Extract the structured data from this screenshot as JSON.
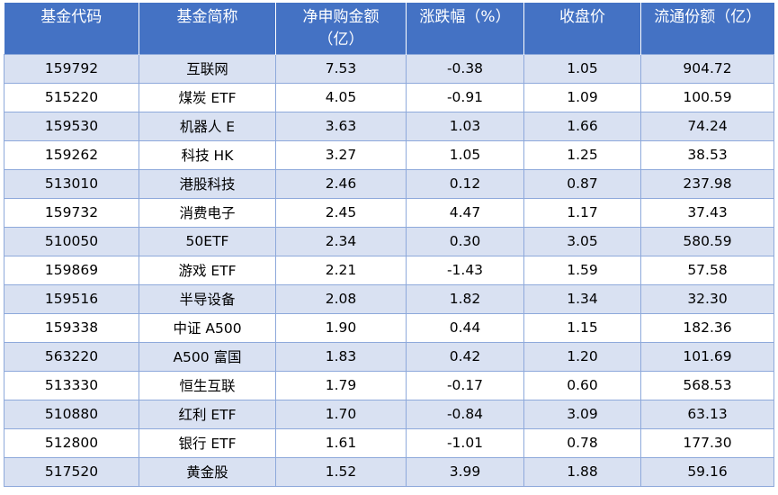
{
  "headers": [
    "基金代码",
    "基金简称",
    "净申购金额\n（亿）",
    "涨跌幅（%）",
    "收盘价",
    "流通份额（亿）"
  ],
  "rows": [
    [
      "159792",
      "互联网",
      "7.53",
      "-0.38",
      "1.05",
      "904.72"
    ],
    [
      "515220",
      "煤炭 ETF",
      "4.05",
      "-0.91",
      "1.09",
      "100.59"
    ],
    [
      "159530",
      "机器人 E",
      "3.63",
      "1.03",
      "1.66",
      "74.24"
    ],
    [
      "159262",
      "科技 HK",
      "3.27",
      "1.05",
      "1.25",
      "38.53"
    ],
    [
      "513010",
      "港股科技",
      "2.46",
      "0.12",
      "0.87",
      "237.98"
    ],
    [
      "159732",
      "消费电子",
      "2.45",
      "4.47",
      "1.17",
      "37.43"
    ],
    [
      "510050",
      "50ETF",
      "2.34",
      "0.30",
      "3.05",
      "580.59"
    ],
    [
      "159869",
      "游戏 ETF",
      "2.21",
      "-1.43",
      "1.59",
      "57.58"
    ],
    [
      "159516",
      "半导设备",
      "2.08",
      "1.82",
      "1.34",
      "32.30"
    ],
    [
      "159338",
      "中证 A500",
      "1.90",
      "0.44",
      "1.15",
      "182.36"
    ],
    [
      "563220",
      "A500 富国",
      "1.83",
      "0.42",
      "1.20",
      "101.69"
    ],
    [
      "513330",
      "恒生互联",
      "1.79",
      "-0.17",
      "0.60",
      "568.53"
    ],
    [
      "510880",
      "红利 ETF",
      "1.70",
      "-0.84",
      "3.09",
      "63.13"
    ],
    [
      "512800",
      "银行 ETF",
      "1.61",
      "-1.01",
      "0.78",
      "177.30"
    ],
    [
      "517520",
      "黄金股",
      "1.52",
      "3.99",
      "1.88",
      "59.16"
    ]
  ],
  "colors": {
    "header_bg": "#4472c4",
    "band_bg": "#d9e1f2",
    "border": "#8ea9db"
  }
}
